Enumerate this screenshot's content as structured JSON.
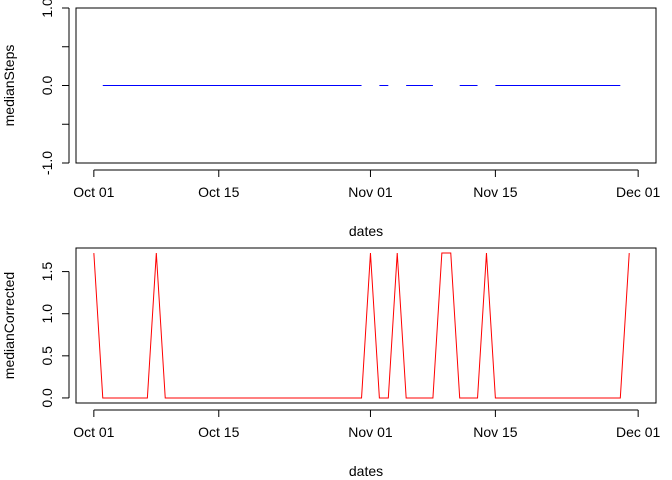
{
  "chart_data": [
    {
      "type": "line",
      "xlabel": "dates",
      "ylabel": "medianSteps",
      "x_ticks": [
        "Oct 01",
        "Oct 15",
        "Nov 01",
        "Nov 15",
        "Dec 01"
      ],
      "y_ticks": [
        "-1.0",
        "",
        "0.0",
        "",
        "1.0"
      ],
      "ylim": [
        -1.0,
        1.0
      ],
      "series": [
        {
          "color": "#0000ff",
          "x": [
            "2012-10-02",
            "2012-10-03",
            "2012-10-04",
            "2012-10-05",
            "2012-10-06",
            "2012-10-07",
            "2012-10-09",
            "2012-10-10",
            "2012-10-11",
            "2012-10-12",
            "2012-10-13",
            "2012-10-14",
            "2012-10-15",
            "2012-10-16",
            "2012-10-17",
            "2012-10-18",
            "2012-10-19",
            "2012-10-20",
            "2012-10-21",
            "2012-10-22",
            "2012-10-23",
            "2012-10-24",
            "2012-10-25",
            "2012-10-26",
            "2012-10-27",
            "2012-10-28",
            "2012-10-29",
            "2012-10-30",
            "2012-10-31",
            "2012-11-01",
            "2012-11-02",
            "2012-11-03",
            "2012-11-04",
            "2012-11-05",
            "2012-11-06",
            "2012-11-07",
            "2012-11-08",
            "2012-11-09",
            "2012-11-10",
            "2012-11-11",
            "2012-11-12",
            "2012-11-13",
            "2012-11-14",
            "2012-11-15",
            "2012-11-16",
            "2012-11-17",
            "2012-11-18",
            "2012-11-19",
            "2012-11-20",
            "2012-11-21",
            "2012-11-22",
            "2012-11-23",
            "2012-11-24",
            "2012-11-25",
            "2012-11-26",
            "2012-11-27",
            "2012-11-28",
            "2012-11-29",
            "2012-11-30"
          ],
          "y": [
            0,
            0,
            0,
            0,
            0,
            0,
            0,
            0,
            0,
            0,
            0,
            0,
            0,
            0,
            0,
            0,
            0,
            0,
            0,
            0,
            0,
            0,
            0,
            0,
            0,
            0,
            0,
            0,
            0,
            null,
            0,
            0,
            null,
            0,
            0,
            0,
            0,
            null,
            null,
            0,
            0,
            0,
            null,
            0,
            0,
            0,
            0,
            0,
            0,
            0,
            0,
            0,
            0,
            0,
            0,
            0,
            0,
            0,
            null
          ]
        }
      ]
    },
    {
      "type": "line",
      "xlabel": "dates",
      "ylabel": "medianCorrected",
      "x_ticks": [
        "Oct 01",
        "Oct 15",
        "Nov 01",
        "Nov 15",
        "Dec 01"
      ],
      "y_ticks": [
        "0.0",
        "0.5",
        "1.0",
        "1.5"
      ],
      "ylim": [
        -0.06,
        1.78
      ],
      "series": [
        {
          "color": "#ff0000",
          "x": [
            "2012-10-01",
            "2012-10-02",
            "2012-10-03",
            "2012-10-04",
            "2012-10-05",
            "2012-10-06",
            "2012-10-07",
            "2012-10-08",
            "2012-10-09",
            "2012-10-10",
            "2012-10-11",
            "2012-10-12",
            "2012-10-13",
            "2012-10-14",
            "2012-10-15",
            "2012-10-16",
            "2012-10-17",
            "2012-10-18",
            "2012-10-19",
            "2012-10-20",
            "2012-10-21",
            "2012-10-22",
            "2012-10-23",
            "2012-10-24",
            "2012-10-25",
            "2012-10-26",
            "2012-10-27",
            "2012-10-28",
            "2012-10-29",
            "2012-10-30",
            "2012-10-31",
            "2012-11-01",
            "2012-11-02",
            "2012-11-03",
            "2012-11-04",
            "2012-11-05",
            "2012-11-06",
            "2012-11-07",
            "2012-11-08",
            "2012-11-09",
            "2012-11-10",
            "2012-11-11",
            "2012-11-12",
            "2012-11-13",
            "2012-11-14",
            "2012-11-15",
            "2012-11-16",
            "2012-11-17",
            "2012-11-18",
            "2012-11-19",
            "2012-11-20",
            "2012-11-21",
            "2012-11-22",
            "2012-11-23",
            "2012-11-24",
            "2012-11-25",
            "2012-11-26",
            "2012-11-27",
            "2012-11-28",
            "2012-11-29",
            "2012-11-30"
          ],
          "y": [
            1.72,
            0,
            0,
            0,
            0,
            0,
            0,
            1.72,
            0,
            0,
            0,
            0,
            0,
            0,
            0,
            0,
            0,
            0,
            0,
            0,
            0,
            0,
            0,
            0,
            0,
            0,
            0,
            0,
            0,
            0,
            0,
            1.72,
            0,
            0,
            1.72,
            0,
            0,
            0,
            0,
            1.72,
            1.72,
            0,
            0,
            0,
            1.72,
            0,
            0,
            0,
            0,
            0,
            0,
            0,
            0,
            0,
            0,
            0,
            0,
            0,
            0,
            0,
            1.72
          ]
        }
      ]
    }
  ]
}
